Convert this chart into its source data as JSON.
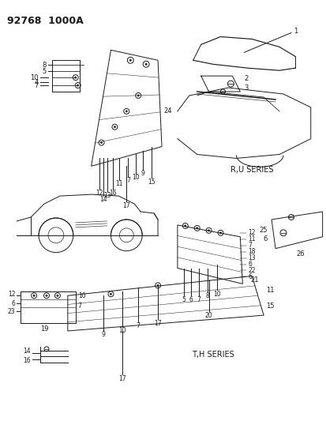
{
  "title": "92768  1000A",
  "background_color": "#ffffff",
  "line_color": "#1a1a1a",
  "figsize": [
    4.14,
    5.33
  ],
  "dpi": 100,
  "ru_series_label": "R,U SERIES",
  "th_series_label": "T,H SERIES"
}
